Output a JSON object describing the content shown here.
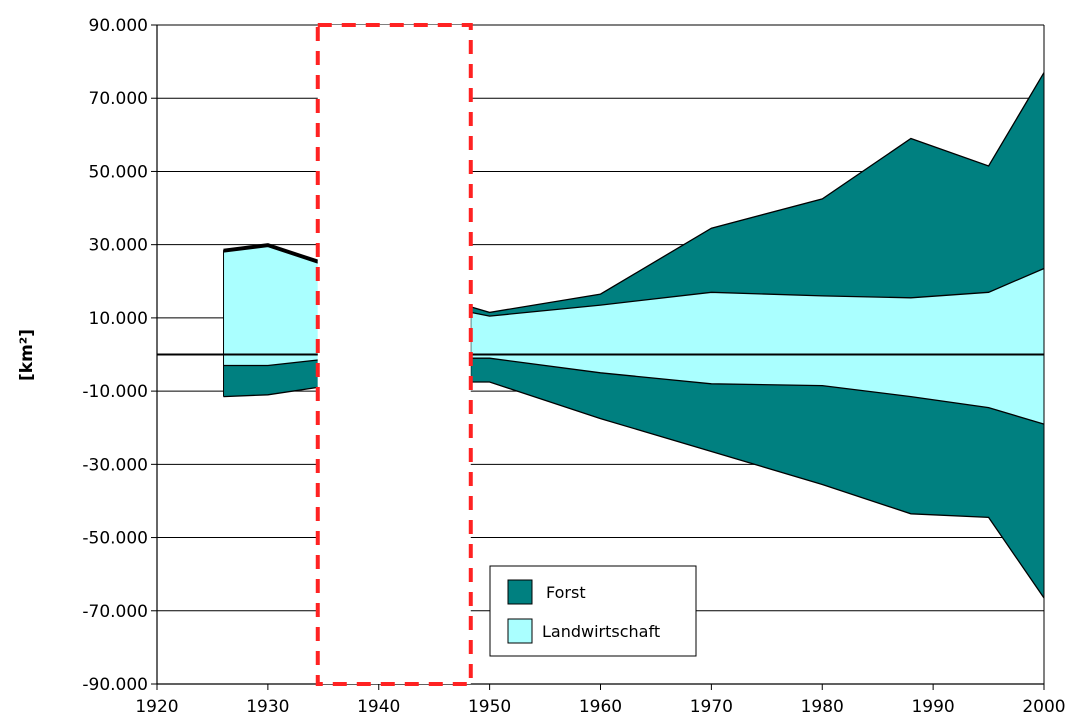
{
  "chart_data": {
    "type": "area",
    "ylabel": "[km²]",
    "xlabel": "",
    "title": "",
    "xlim": [
      1920,
      2000
    ],
    "ylim": [
      -90000,
      90000
    ],
    "x_ticks": [
      1920,
      1930,
      1940,
      1950,
      1960,
      1970,
      1980,
      1990,
      2000
    ],
    "x_tick_labels": [
      "1920",
      "1930",
      "1940",
      "1950",
      "1960",
      "1970",
      "1980",
      "1990",
      "2000"
    ],
    "y_ticks": [
      90000,
      70000,
      50000,
      30000,
      10000,
      -10000,
      -30000,
      -50000,
      -70000,
      -90000
    ],
    "y_tick_labels": [
      "90.000",
      "70.000",
      "50.000",
      "30.000",
      "10.000",
      "-10.000",
      "-30.000",
      "-50.000",
      "-70.000",
      "-90.000"
    ],
    "grid": "horizontal",
    "legend_position": "bottom-center",
    "series": [
      {
        "name": "Forst",
        "color": "#008080",
        "positive": [
          {
            "x": 1926,
            "y": 28500
          },
          {
            "x": 1930,
            "y": 30000
          },
          {
            "x": 1934.5,
            "y": 25500
          },
          {
            "x": 1948.3,
            "y": 13000
          },
          {
            "x": 1950,
            "y": 11500
          },
          {
            "x": 1960,
            "y": 16500
          },
          {
            "x": 1970,
            "y": 34500
          },
          {
            "x": 1980,
            "y": 42500
          },
          {
            "x": 1988,
            "y": 59000
          },
          {
            "x": 1995,
            "y": 51500
          },
          {
            "x": 2000,
            "y": 77000
          }
        ],
        "negative": [
          {
            "x": 1926,
            "y": -11500
          },
          {
            "x": 1930,
            "y": -11000
          },
          {
            "x": 1934.5,
            "y": -9000
          },
          {
            "x": 1948.3,
            "y": -7500
          },
          {
            "x": 1950,
            "y": -7500
          },
          {
            "x": 1960,
            "y": -17500
          },
          {
            "x": 1970,
            "y": -26500
          },
          {
            "x": 1980,
            "y": -35500
          },
          {
            "x": 1988,
            "y": -43500
          },
          {
            "x": 1995,
            "y": -44500
          },
          {
            "x": 2000,
            "y": -66500
          }
        ]
      },
      {
        "name": "Landwirtschaft",
        "color": "#aaffff",
        "positive": [
          {
            "x": 1926,
            "y": 28000
          },
          {
            "x": 1930,
            "y": 29500
          },
          {
            "x": 1934.5,
            "y": 25000
          },
          {
            "x": 1948.3,
            "y": 11500
          },
          {
            "x": 1950,
            "y": 10500
          },
          {
            "x": 1960,
            "y": 13500
          },
          {
            "x": 1970,
            "y": 17000
          },
          {
            "x": 1980,
            "y": 16000
          },
          {
            "x": 1988,
            "y": 15500
          },
          {
            "x": 1995,
            "y": 17000
          },
          {
            "x": 2000,
            "y": 23500
          }
        ],
        "negative": [
          {
            "x": 1926,
            "y": -3000
          },
          {
            "x": 1930,
            "y": -3000
          },
          {
            "x": 1934.5,
            "y": -1500
          },
          {
            "x": 1948.3,
            "y": -1000
          },
          {
            "x": 1950,
            "y": -1000
          },
          {
            "x": 1960,
            "y": -5000
          },
          {
            "x": 1970,
            "y": -8000
          },
          {
            "x": 1980,
            "y": -8500
          },
          {
            "x": 1988,
            "y": -11500
          },
          {
            "x": 1995,
            "y": -14500
          },
          {
            "x": 2000,
            "y": -19000
          }
        ]
      }
    ],
    "data_gap": {
      "from": 1934.5,
      "to": 1948.3,
      "style": "red-dashed-box",
      "color": "#ff2222"
    },
    "legend": [
      "Forst",
      "Landwirtschaft"
    ]
  }
}
